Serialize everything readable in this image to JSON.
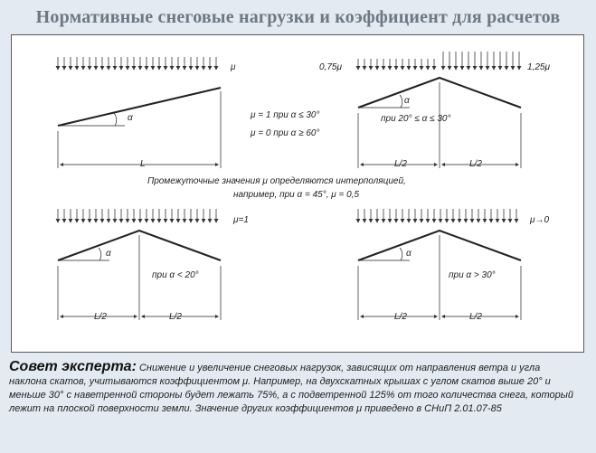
{
  "title": "Нормативные снеговые нагрузки и коэффициент для расчетов",
  "diagram": {
    "mono_mu": "μ",
    "mono_rule_1": "μ = 1 при α ≤ 30°",
    "mono_rule_2": "μ = 0 при α ≥ 60°",
    "mono_angle": "α",
    "mono_span": "L",
    "gable1_mu_left": "0,75μ",
    "gable1_mu_right": "1,25μ",
    "gable1_angle": "α",
    "gable1_cond": "при 20° ≤ α ≤ 30°",
    "gable1_half_left": "L/2",
    "gable1_half_right": "L/2",
    "interp_line1": "Промежуточные значения μ определяются интерполяцией,",
    "interp_line2": "например, при α = 45°, μ = 0,5",
    "gable2_mu": "μ=1",
    "gable2_angle": "α",
    "gable2_cond": "при α < 20°",
    "gable2_half_left": "L/2",
    "gable2_half_right": "L/2",
    "gable3_mu": "μ→0",
    "gable3_angle": "α",
    "gable3_cond": "при α > 30°",
    "gable3_half_left": "L/2",
    "gable3_half_right": "L/2"
  },
  "advice": {
    "heading": "Совет эксперта:",
    "text": " Снижение и увеличение снеговых нагрузок, зависящих от направления ветра и угла наклона скатов, учитываются коэффициентом μ. Например, на двухскатных крышах с углом скатов выше 20° и меньше 30° с наветренной стороны будет лежать 75%, а с подветренной 125% от того количества снега, который лежит на плоской поверхности земли. Значение других коэффициентов μ приведено в СНиП 2.01.07-85"
  }
}
